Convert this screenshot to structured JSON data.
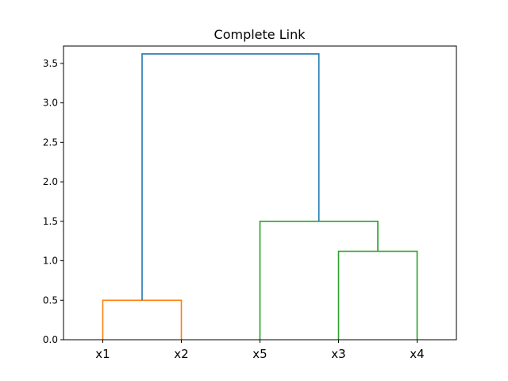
{
  "chart_data": {
    "type": "dendrogram",
    "title": "Complete Link",
    "xlabel": "",
    "ylabel": "",
    "leaves": [
      "x1",
      "x2",
      "x5",
      "x3",
      "x4"
    ],
    "ylim": [
      0,
      3.72
    ],
    "yticks": [
      "0.0",
      "0.5",
      "1.0",
      "1.5",
      "2.0",
      "2.5",
      "3.0",
      "3.5"
    ],
    "grid": false,
    "colors": {
      "orange": "#ff7f0e",
      "green": "#2ca02c",
      "blue": "#1f77b4"
    },
    "links": [
      {
        "left": "x1",
        "right": "x2",
        "height": 0.5,
        "color": "orange",
        "left_height": 0,
        "right_height": 0
      },
      {
        "left": "x3",
        "right": "x4",
        "height": 1.12,
        "color": "green",
        "left_height": 0,
        "right_height": 0
      },
      {
        "left": "x5",
        "right": "(x3,x4)",
        "height": 1.5,
        "color": "green",
        "left_height": 0,
        "right_height": 1.12
      },
      {
        "left": "(x1,x2)",
        "right": "(x5,x3,x4)",
        "height": 3.62,
        "color": "blue",
        "left_height": 0.5,
        "right_height": 1.5
      }
    ]
  }
}
